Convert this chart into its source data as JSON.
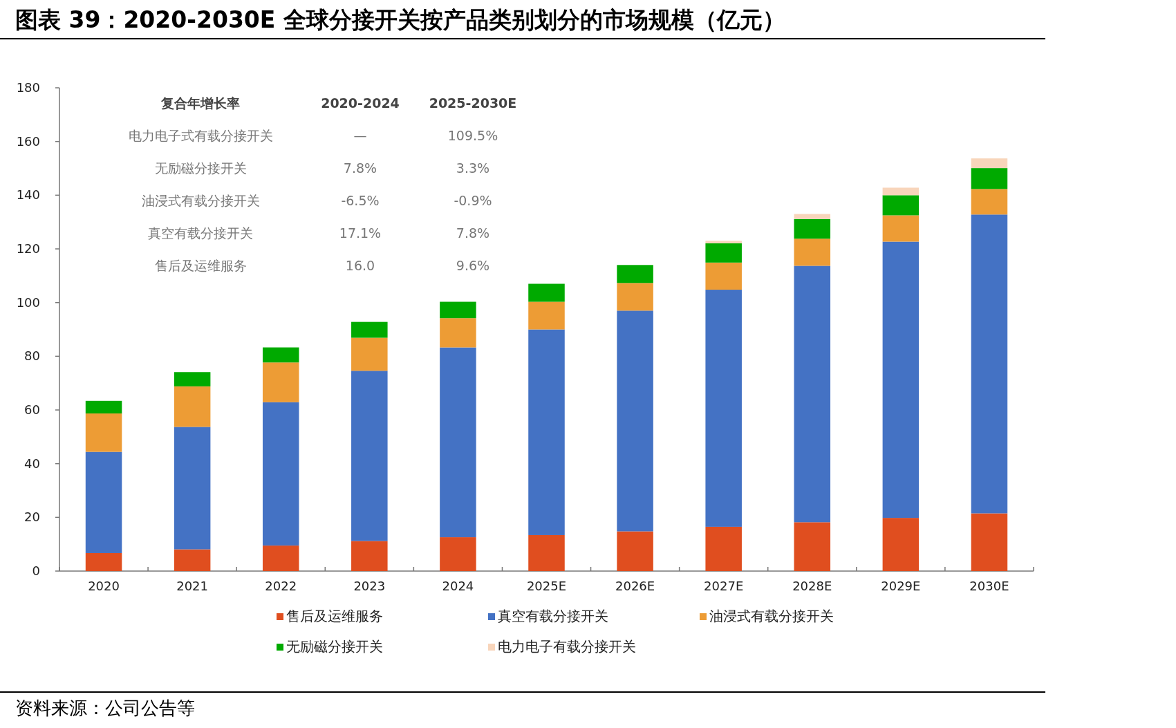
{
  "chart_data": {
    "type": "bar",
    "title": "图表 39：2020-2030E 全球分接开关按产品类别划分的市场规模（亿元）",
    "categories": [
      "2020",
      "2021",
      "2022",
      "2023",
      "2024",
      "2025E",
      "2026E",
      "2027E",
      "2028E",
      "2029E",
      "2030E"
    ],
    "stacked": true,
    "ylim": [
      0,
      180
    ],
    "yticks": [
      0,
      20,
      40,
      60,
      80,
      100,
      120,
      140,
      160,
      180
    ],
    "legend": "bottom",
    "series": [
      {
        "name": "售后及运维服务",
        "color": "#e04e1f",
        "values": [
          6.7,
          8.1,
          9.5,
          11.2,
          12.6,
          13.4,
          14.8,
          16.5,
          18.2,
          19.8,
          21.5
        ]
      },
      {
        "name": "真空有载分接开关",
        "color": "#4472c4",
        "values": [
          37.7,
          45.6,
          53.4,
          63.4,
          70.7,
          76.6,
          82.2,
          88.3,
          95.5,
          102.9,
          111.3
        ]
      },
      {
        "name": "油浸式有载分接开关",
        "color": "#ed9c35",
        "values": [
          14.3,
          15.1,
          14.8,
          12.3,
          10.9,
          10.3,
          10.3,
          10.1,
          10.1,
          9.8,
          9.5
        ]
      },
      {
        "name": "无励磁分接开关",
        "color": "#00aa00",
        "values": [
          4.7,
          5.3,
          5.6,
          5.9,
          6.1,
          6.7,
          6.7,
          7.2,
          7.3,
          7.5,
          7.8
        ]
      },
      {
        "name": "电力电子有载分接开关",
        "color": "#f8d5bb",
        "values": [
          null,
          null,
          null,
          null,
          null,
          null,
          null,
          0.9,
          1.9,
          2.8,
          3.6
        ]
      }
    ],
    "annotations": [
      "复合年增长率",
      "2020-2024",
      "2025-2030E",
      "电力电子式有载分接开关",
      "—",
      "109.5%",
      "无励磁分接开关",
      "7.8%",
      "3.3%",
      "油浸式有载分接开关",
      "-6.5%",
      "-0.9%",
      "真空有载分接开关",
      "17.1%",
      "7.8%",
      "售后及运维服务",
      "16.0",
      "9.6%",
      "资料来源：公司公告等"
    ]
  }
}
